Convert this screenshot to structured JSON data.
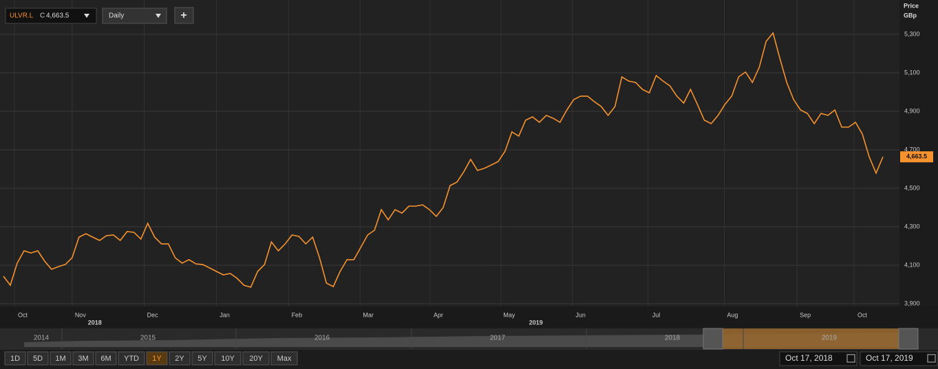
{
  "toolbar": {
    "ticker": "ULVR.L",
    "close_prefix": "C",
    "close": "4,663.5",
    "interval": "Daily",
    "add": "+"
  },
  "chart_data": {
    "type": "line",
    "axis_title": [
      "Price",
      "GBp"
    ],
    "series": [
      {
        "name": "ULVR.L",
        "color": "#f7932f",
        "values": [
          4043,
          3996,
          4111,
          4175,
          4164,
          4175,
          4121,
          4079,
          4093,
          4104,
          4139,
          4246,
          4264,
          4246,
          4229,
          4254,
          4257,
          4229,
          4275,
          4271,
          4236,
          4318,
          4246,
          4211,
          4211,
          4139,
          4111,
          4129,
          4107,
          4104,
          4086,
          4068,
          4050,
          4057,
          4032,
          3996,
          3986,
          4068,
          4104,
          4221,
          4175,
          4211,
          4257,
          4250,
          4211,
          4246,
          4139,
          4007,
          3989,
          4068,
          4129,
          4129,
          4193,
          4257,
          4282,
          4389,
          4336,
          4389,
          4371,
          4407,
          4407,
          4414,
          4389,
          4354,
          4400,
          4514,
          4532,
          4586,
          4650,
          4593,
          4604,
          4621,
          4639,
          4693,
          4793,
          4771,
          4854,
          4871,
          4843,
          4879,
          4864,
          4843,
          4907,
          4961,
          4979,
          4979,
          4950,
          4925,
          4879,
          4925,
          5079,
          5057,
          5050,
          5014,
          4996,
          5086,
          5057,
          5032,
          4979,
          4943,
          5014,
          4936,
          4854,
          4836,
          4879,
          4936,
          4979,
          5079,
          5104,
          5050,
          5129,
          5264,
          5307,
          5175,
          5050,
          4961,
          4907,
          4889,
          4836,
          4889,
          4879,
          4907,
          4818,
          4818,
          4843,
          4782,
          4664,
          4579,
          4663.5
        ]
      }
    ],
    "last_label": "4,663.5",
    "xlim": [
      0,
      128
    ],
    "xticks": [
      {
        "value": 2.8,
        "label": "Oct"
      },
      {
        "value": 11.2,
        "label": "Nov"
      },
      {
        "value": 21.7,
        "label": "Dec"
      },
      {
        "value": 32.2,
        "label": "Jan"
      },
      {
        "value": 42.7,
        "label": "Feb"
      },
      {
        "value": 53.1,
        "label": "Mar"
      },
      {
        "value": 63.3,
        "label": "Apr"
      },
      {
        "value": 73.6,
        "label": "May"
      },
      {
        "value": 84,
        "label": "Jun"
      },
      {
        "value": 95,
        "label": "Jul"
      },
      {
        "value": 106.1,
        "label": "Aug"
      },
      {
        "value": 116.7,
        "label": "Sep"
      },
      {
        "value": 125,
        "label": "Oct"
      }
    ],
    "year_ticks": [
      {
        "value": 13.3,
        "label": "2018"
      },
      {
        "value": 77.5,
        "label": "2019"
      }
    ],
    "ylim": [
      3900,
      5450
    ],
    "yticks": [
      {
        "value": 3900,
        "label": "3,900"
      },
      {
        "value": 4100,
        "label": "4,100"
      },
      {
        "value": 4300,
        "label": "4,300"
      },
      {
        "value": 4500,
        "label": "4,500"
      },
      {
        "value": 4700,
        "label": "4,700"
      },
      {
        "value": 4900,
        "label": "4,900"
      },
      {
        "value": 5100,
        "label": "5,100"
      },
      {
        "value": 5300,
        "label": "5,300"
      }
    ],
    "grid": true
  },
  "navigator": {
    "years": [
      "2014",
      "2015",
      "2016",
      "2017",
      "2018",
      "2019"
    ]
  },
  "ranges": [
    "1D",
    "5D",
    "1M",
    "3M",
    "6M",
    "YTD",
    "1Y",
    "2Y",
    "5Y",
    "10Y",
    "20Y",
    "Max"
  ],
  "selected_range": 6,
  "dates": [
    "Oct 17, 2018",
    "Oct 17, 2019"
  ]
}
